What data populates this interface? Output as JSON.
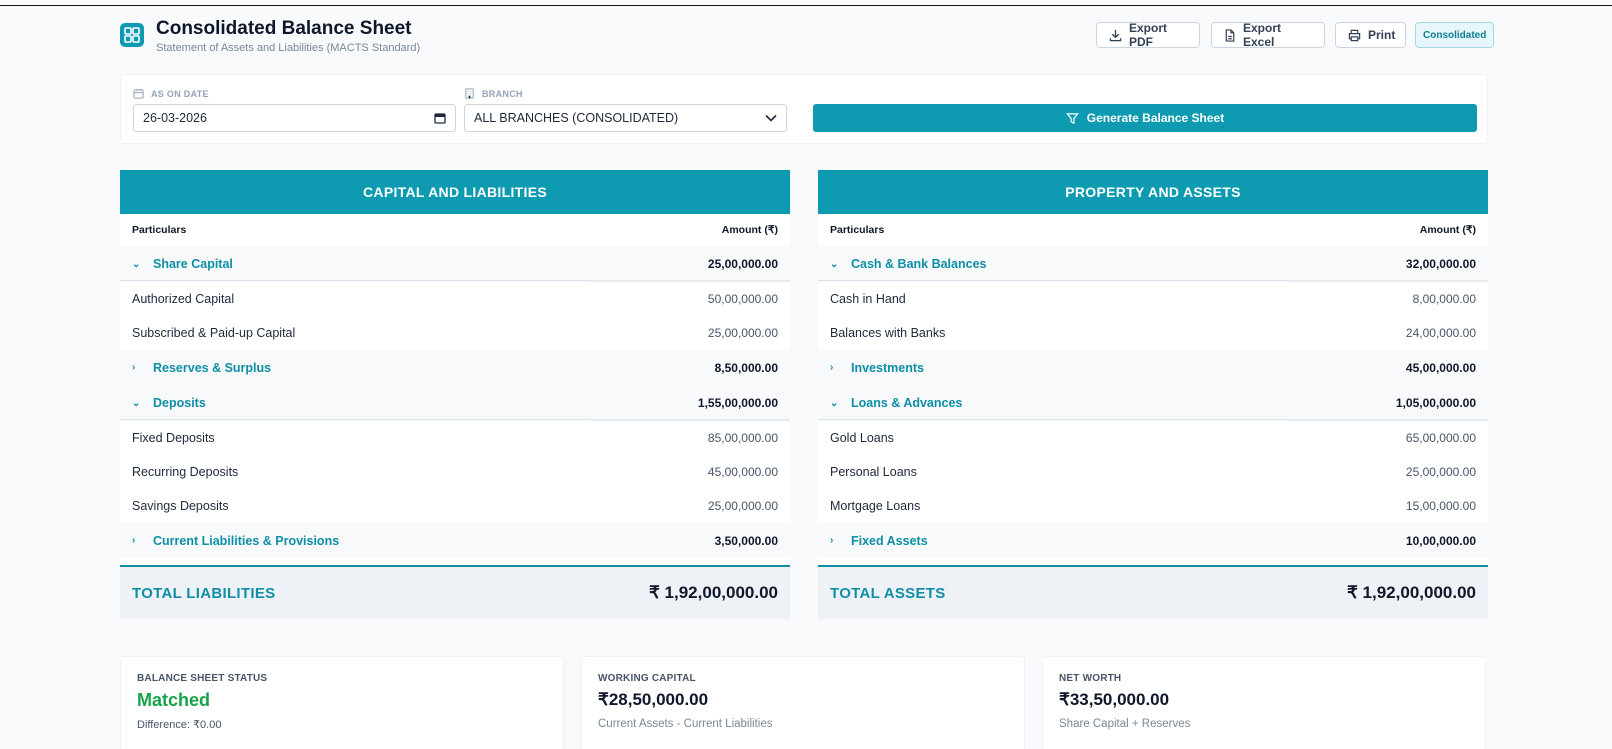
{
  "header": {
    "title": "Consolidated Balance Sheet",
    "subtitle": "Statement of Assets and Liabilities (MACTS Standard)",
    "export_pdf": "Export PDF",
    "export_excel": "Export Excel",
    "print": "Print",
    "badge": "Consolidated"
  },
  "filters": {
    "date_label": "AS ON DATE",
    "date_value": "26-03-2026",
    "branch_label": "BRANCH",
    "branch_value": "ALL BRANCHES (CONSOLIDATED)",
    "generate": "Generate Balance Sheet"
  },
  "liabilities": {
    "title": "CAPITAL AND LIABILITIES",
    "col_particulars": "Particulars",
    "col_amount": "Amount (₹)",
    "groups": [
      {
        "label": "Share Capital",
        "amount": "25,00,000.00",
        "expanded": true,
        "items": [
          {
            "label": "Authorized Capital",
            "amount": "50,00,000.00"
          },
          {
            "label": "Subscribed & Paid-up Capital",
            "amount": "25,00,000.00"
          }
        ]
      },
      {
        "label": "Reserves & Surplus",
        "amount": "8,50,000.00",
        "expanded": false,
        "items": []
      },
      {
        "label": "Deposits",
        "amount": "1,55,00,000.00",
        "expanded": true,
        "items": [
          {
            "label": "Fixed Deposits",
            "amount": "85,00,000.00"
          },
          {
            "label": "Recurring Deposits",
            "amount": "45,00,000.00"
          },
          {
            "label": "Savings Deposits",
            "amount": "25,00,000.00"
          }
        ]
      },
      {
        "label": "Current Liabilities & Provisions",
        "amount": "3,50,000.00",
        "expanded": false,
        "items": []
      }
    ],
    "total_label": "TOTAL LIABILITIES",
    "total_amount": "₹ 1,92,00,000.00"
  },
  "assets": {
    "title": "PROPERTY AND ASSETS",
    "col_particulars": "Particulars",
    "col_amount": "Amount (₹)",
    "groups": [
      {
        "label": "Cash & Bank Balances",
        "amount": "32,00,000.00",
        "expanded": true,
        "items": [
          {
            "label": "Cash in Hand",
            "amount": "8,00,000.00"
          },
          {
            "label": "Balances with Banks",
            "amount": "24,00,000.00"
          }
        ]
      },
      {
        "label": "Investments",
        "amount": "45,00,000.00",
        "expanded": false,
        "items": []
      },
      {
        "label": "Loans & Advances",
        "amount": "1,05,00,000.00",
        "expanded": true,
        "items": [
          {
            "label": "Gold Loans",
            "amount": "65,00,000.00"
          },
          {
            "label": "Personal Loans",
            "amount": "25,00,000.00"
          },
          {
            "label": "Mortgage Loans",
            "amount": "15,00,000.00"
          }
        ]
      },
      {
        "label": "Fixed Assets",
        "amount": "10,00,000.00",
        "expanded": false,
        "items": []
      }
    ],
    "total_label": "TOTAL ASSETS",
    "total_amount": "₹ 1,92,00,000.00"
  },
  "cards": [
    {
      "label": "BALANCE SHEET STATUS",
      "value": "Matched",
      "sub": "Difference: ₹0.00"
    },
    {
      "label": "WORKING CAPITAL",
      "value": "₹28,50,000.00",
      "sub": "Current Assets - Current Liabilities"
    },
    {
      "label": "NET WORTH",
      "value": "₹33,50,000.00",
      "sub": "Share Capital + Reserves"
    }
  ],
  "colors": {
    "accent": "#0e9bb2",
    "success": "#16a34a"
  }
}
